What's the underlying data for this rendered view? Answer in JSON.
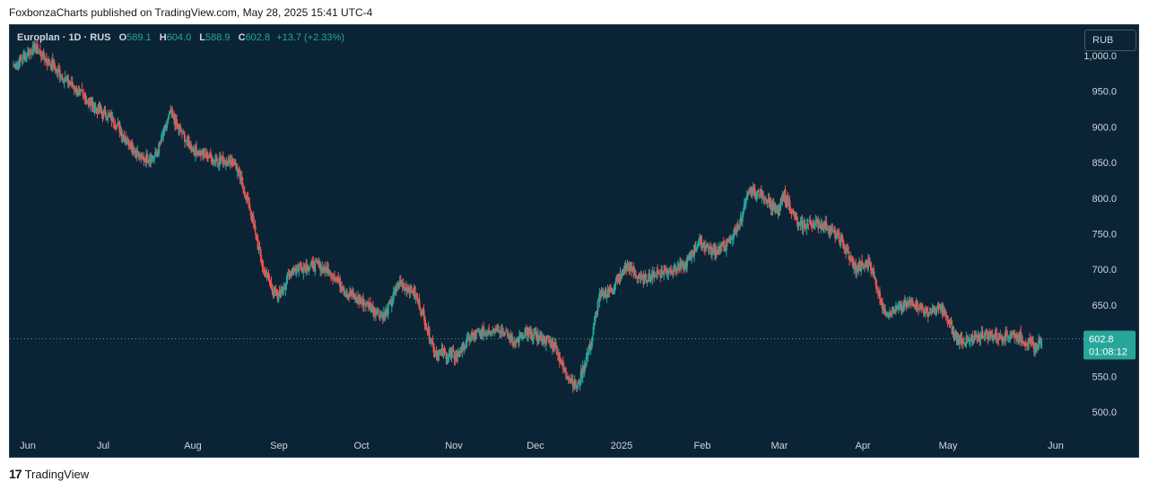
{
  "header": {
    "publish_text": "FoxbonzaCharts published on TradingView.com, May 28, 2025 15:41 UTC-4"
  },
  "legend": {
    "symbol": "Europlan · 1D · RUS",
    "o_label": "O",
    "o_value": "589.1",
    "h_label": "H",
    "h_value": "604.0",
    "l_label": "L",
    "l_value": "588.9",
    "c_label": "C",
    "c_value": "602.8",
    "change": "+13.7 (+2.33%)"
  },
  "toolbar": {
    "currency": "RUB"
  },
  "footer": {
    "brand": "TradingView",
    "logo_text": "17"
  },
  "colors": {
    "up": "#26a69a",
    "down": "#ef5350",
    "background": "#0b2435",
    "axis_text": "#d1d4dc"
  },
  "chart_data": {
    "type": "candlestick",
    "y_axis_ticks": [
      "1,000.0",
      "950.0",
      "900.0",
      "850.0",
      "800.0",
      "750.0",
      "700.0",
      "650.0",
      "600.0",
      "550.0",
      "500.0"
    ],
    "y_tick_values": [
      1000,
      950,
      900,
      850,
      800,
      750,
      700,
      650,
      600,
      550,
      500
    ],
    "x_axis_labels": [
      "Jun",
      "Jul",
      "Aug",
      "Sep",
      "Oct",
      "Nov",
      "Dec",
      "2025",
      "Feb",
      "Mar",
      "Apr",
      "May",
      "Jun"
    ],
    "ylim": [
      470,
      1030
    ],
    "last_price": {
      "value": 602.8,
      "label": "602.8",
      "countdown": "01:08:12"
    },
    "close_path": [
      [
        0,
        985
      ],
      [
        3,
        1012
      ],
      [
        5,
        990
      ],
      [
        8,
        960
      ],
      [
        11,
        930
      ],
      [
        14,
        910
      ],
      [
        16,
        880
      ],
      [
        18,
        855
      ],
      [
        20,
        860
      ],
      [
        22,
        920
      ],
      [
        23,
        900
      ],
      [
        25,
        870
      ],
      [
        28,
        855
      ],
      [
        31,
        850
      ],
      [
        33,
        790
      ],
      [
        35,
        700
      ],
      [
        37,
        660
      ],
      [
        39,
        700
      ],
      [
        41,
        705
      ],
      [
        43,
        705
      ],
      [
        45,
        690
      ],
      [
        47,
        665
      ],
      [
        50,
        648
      ],
      [
        52,
        635
      ],
      [
        54,
        680
      ],
      [
        56,
        670
      ],
      [
        57,
        648
      ],
      [
        59,
        585
      ],
      [
        62,
        578
      ],
      [
        64,
        605
      ],
      [
        66,
        612
      ],
      [
        68,
        620
      ],
      [
        70,
        598
      ],
      [
        72,
        608
      ],
      [
        74,
        605
      ],
      [
        76,
        592
      ],
      [
        77,
        560
      ],
      [
        79,
        535
      ],
      [
        81,
        600
      ],
      [
        82,
        660
      ],
      [
        84,
        675
      ],
      [
        86,
        705
      ],
      [
        88,
        685
      ],
      [
        90,
        695
      ],
      [
        92,
        700
      ],
      [
        94,
        705
      ],
      [
        96,
        740
      ],
      [
        98,
        725
      ],
      [
        100,
        735
      ],
      [
        102,
        770
      ],
      [
        103,
        810
      ],
      [
        105,
        805
      ],
      [
        107,
        780
      ],
      [
        108,
        805
      ],
      [
        110,
        760
      ],
      [
        112,
        765
      ],
      [
        114,
        760
      ],
      [
        116,
        740
      ],
      [
        118,
        700
      ],
      [
        120,
        710
      ],
      [
        122,
        640
      ],
      [
        124,
        645
      ],
      [
        126,
        655
      ],
      [
        128,
        640
      ],
      [
        130,
        645
      ],
      [
        132,
        605
      ],
      [
        134,
        598
      ],
      [
        136,
        610
      ],
      [
        138,
        605
      ],
      [
        140,
        610
      ],
      [
        142,
        598
      ],
      [
        143,
        590
      ],
      [
        144,
        602.8
      ]
    ]
  }
}
